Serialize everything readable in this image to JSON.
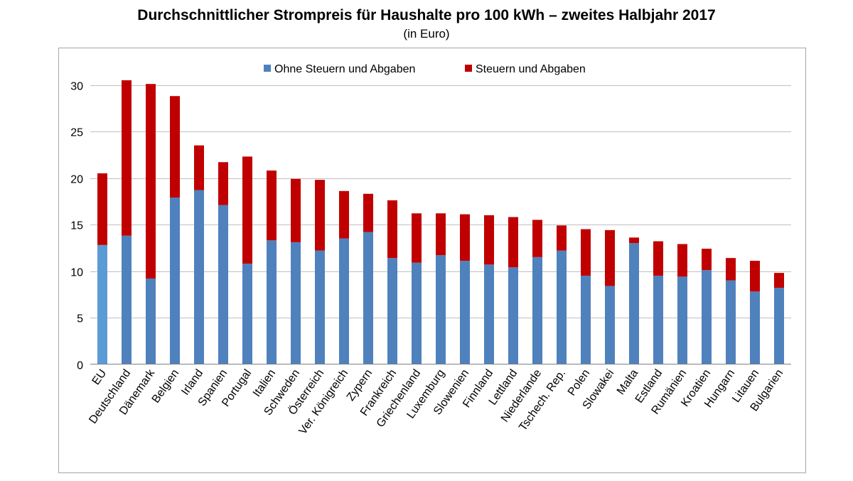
{
  "chart_data": {
    "type": "bar",
    "stacked": true,
    "title": "Durchschnittlicher Strompreis für Haushalte pro 100 kWh – zweites Halbjahr 2017",
    "subtitle": "(in Euro)",
    "xlabel": "",
    "ylabel": "",
    "ylim": [
      0,
      32
    ],
    "yticks": [
      0,
      5,
      10,
      15,
      20,
      25,
      30
    ],
    "grid": true,
    "legend_position": "top",
    "categories": [
      "EU",
      "Deutschland",
      "Dänemark",
      "Belgien",
      "Irland",
      "Spanien",
      "Portugal",
      "Italien",
      "Schweden",
      "Österreich",
      "Ver. Königreich",
      "Zypern",
      "Frankreich",
      "Griechenland",
      "Luxemburg",
      "Slowenien",
      "Finnland",
      "Lettland",
      "Niederlande",
      "Tschech. Rep.",
      "Polen",
      "Slowakei",
      "Malta",
      "Estland",
      "Rumänien",
      "Kroatien",
      "Hungarn",
      "Litauen",
      "Bulgarien"
    ],
    "series": [
      {
        "name": "Ohne Steuern und Abgaben",
        "color": "#4f81bd",
        "highlight_color": "#5b9bd5",
        "values": [
          12.8,
          13.8,
          9.2,
          17.9,
          18.7,
          17.1,
          10.8,
          13.3,
          13.1,
          12.2,
          13.5,
          14.2,
          11.4,
          10.9,
          11.7,
          11.1,
          10.7,
          10.4,
          11.5,
          12.2,
          9.5,
          8.4,
          13.0,
          9.5,
          9.4,
          10.1,
          9.0,
          7.8,
          8.2
        ]
      },
      {
        "name": "Steuern und Abgaben",
        "color": "#c00000",
        "values": [
          7.7,
          16.7,
          20.9,
          10.9,
          4.8,
          4.6,
          11.5,
          7.5,
          6.8,
          7.6,
          5.1,
          4.1,
          6.2,
          5.3,
          4.5,
          5.0,
          5.3,
          5.4,
          4.0,
          2.7,
          5.0,
          6.0,
          0.6,
          3.7,
          3.5,
          2.3,
          2.4,
          3.3,
          1.6
        ]
      }
    ]
  }
}
